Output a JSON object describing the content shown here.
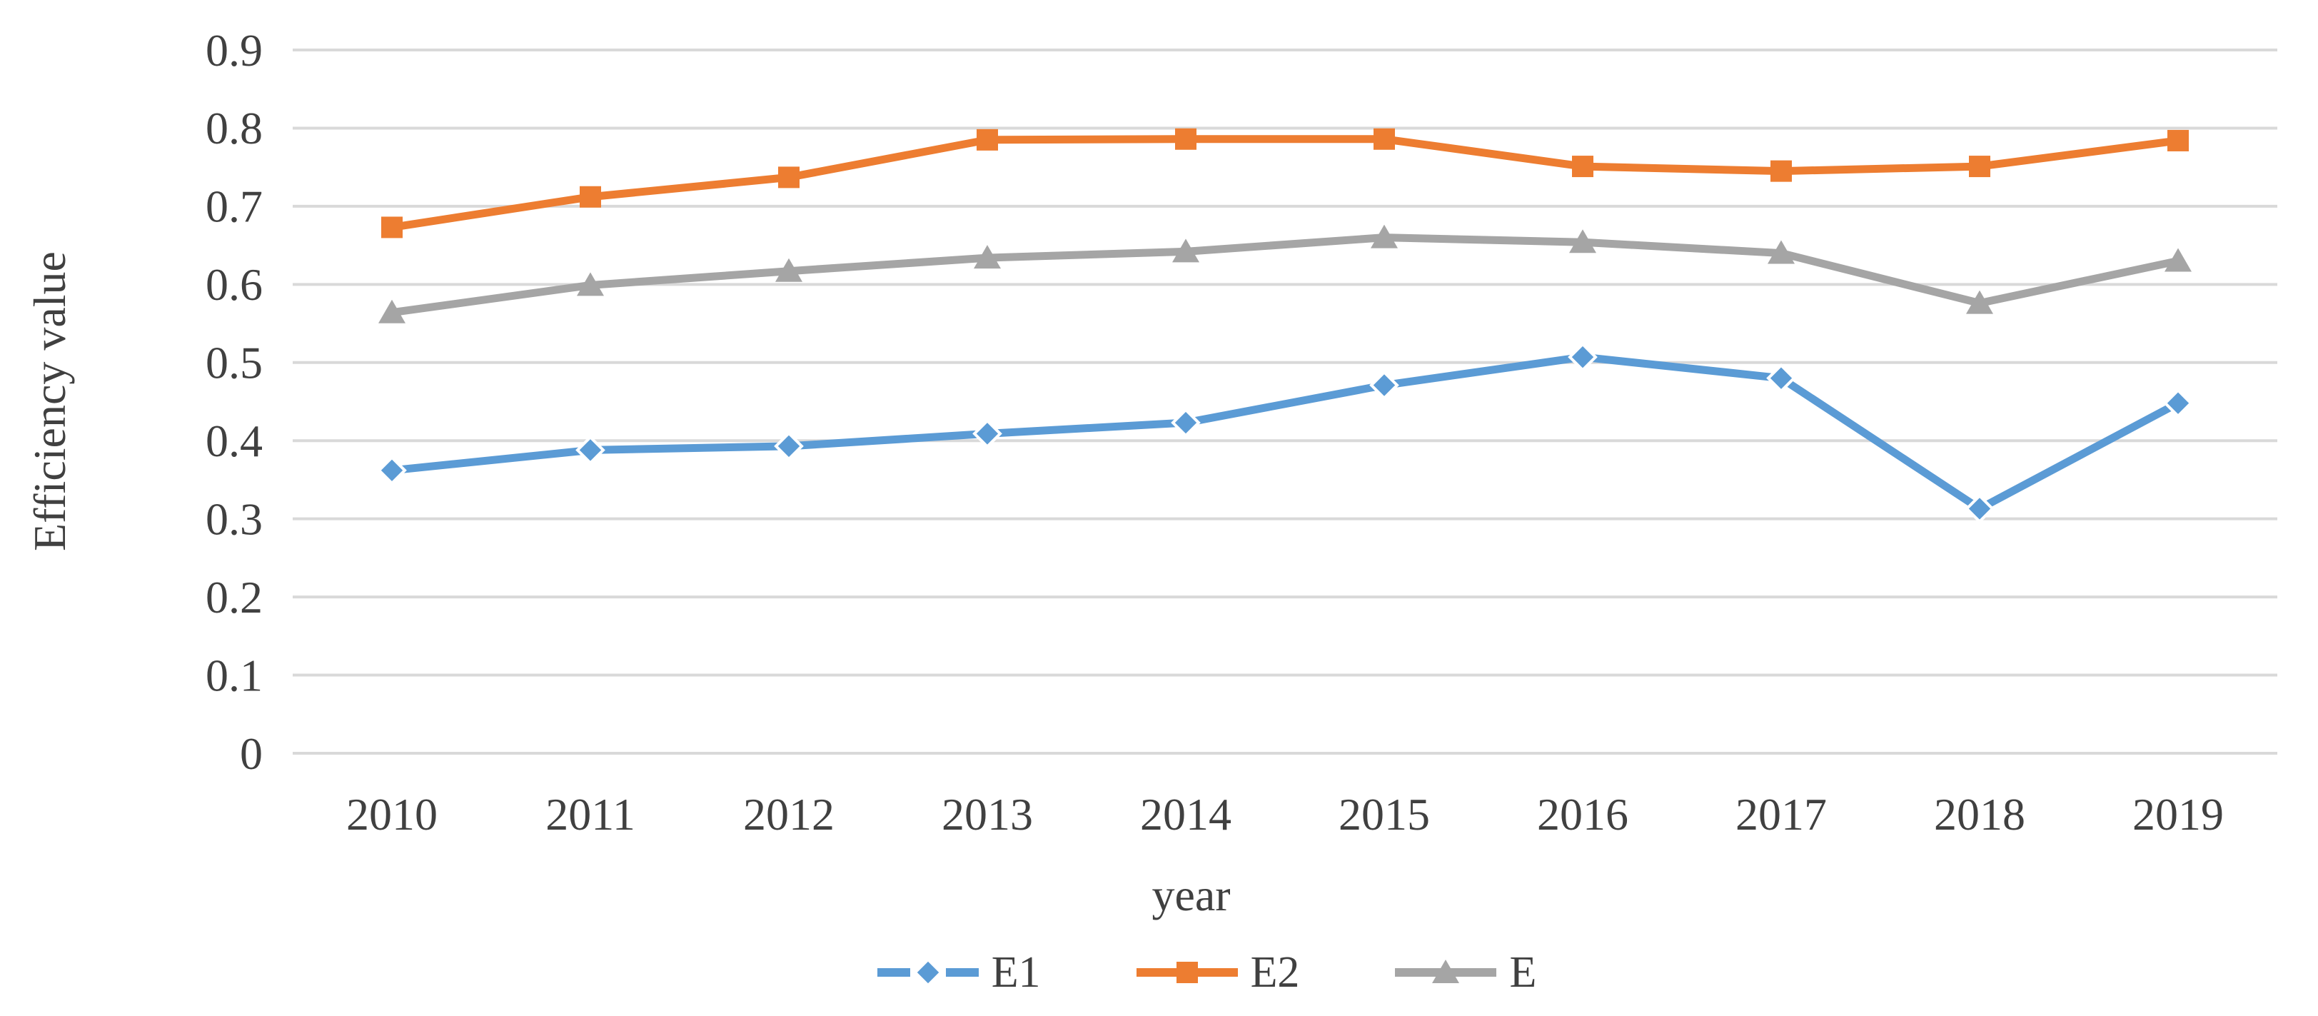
{
  "figure": {
    "background": "#ffffff",
    "text_color": "#404040"
  },
  "chart_data": {
    "type": "line",
    "title": "",
    "xlabel": "year",
    "ylabel": "Efficiency value",
    "categories": [
      "2010",
      "2011",
      "2012",
      "2013",
      "2014",
      "2015",
      "2016",
      "2017",
      "2018",
      "2019"
    ],
    "ylim": [
      0,
      0.9
    ],
    "ytick_step": 0.1,
    "ytick_labels": [
      "0",
      "0.1",
      "0.2",
      "0.3",
      "0.4",
      "0.5",
      "0.6",
      "0.7",
      "0.8",
      "0.9"
    ],
    "grid": "horizontal",
    "gridline_color": "#d9d9d9",
    "legend_position": "bottom",
    "series": [
      {
        "name": "E1",
        "marker": "diamond",
        "color": "#5b9bd5",
        "values": [
          0.362,
          0.388,
          0.393,
          0.409,
          0.423,
          0.471,
          0.507,
          0.48,
          0.313,
          0.448
        ]
      },
      {
        "name": "E2",
        "marker": "square",
        "color": "#ed7d31",
        "values": [
          0.673,
          0.712,
          0.737,
          0.785,
          0.786,
          0.786,
          0.751,
          0.745,
          0.751,
          0.784
        ]
      },
      {
        "name": "E",
        "marker": "triangle",
        "color": "#a5a5a5",
        "values": [
          0.564,
          0.599,
          0.617,
          0.634,
          0.642,
          0.66,
          0.654,
          0.64,
          0.576,
          0.63
        ]
      }
    ]
  }
}
